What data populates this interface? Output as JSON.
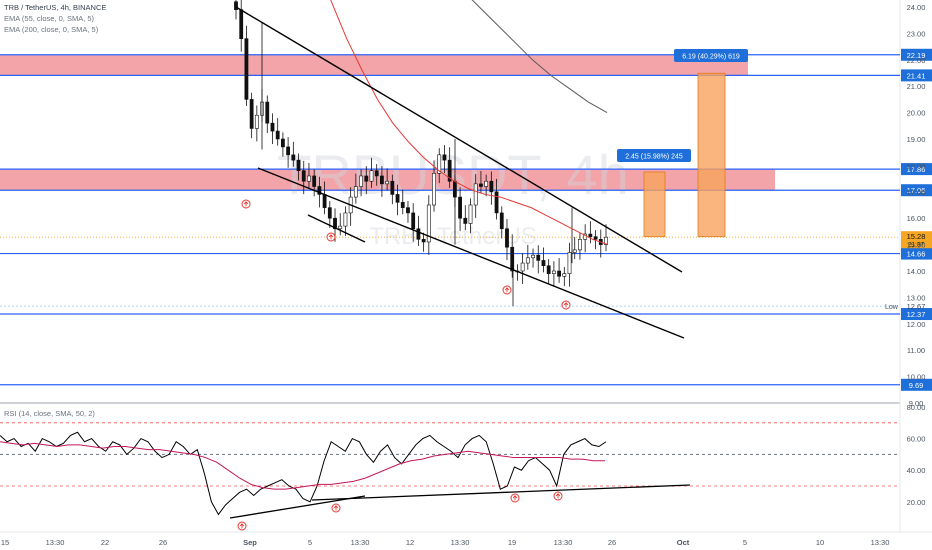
{
  "legend": {
    "title": "TRB / TetherUS, 4h, BINANCE",
    "ema55": "EMA (55, close, 0, SMA, 5)",
    "ema200": "EMA (200, close, 0, SMA, 5)",
    "rsi": "RSI (14, close, SMA, 50, 2)"
  },
  "watermark": {
    "symbol": "TRBUSDT, 4h",
    "name": "TRB / TetherUS"
  },
  "colors": {
    "up": "#26a69a",
    "down": "#ef5350",
    "candle": "#111111",
    "zone": "#f08d94",
    "hline": "#2962ff",
    "ema55": "#e53935",
    "ema200": "#5a5a5a",
    "rsi": "#000000",
    "rsi_ma": "#c2185b",
    "target": "#f7a35c",
    "label_bg": "#1e6fd9",
    "price_tag": "#f5a623"
  },
  "chart_data": [
    {
      "type": "line",
      "title": "TRB / TetherUS, 4h, BINANCE",
      "y_axis": {
        "ticks": [
          "24.00",
          "23.00",
          "22.00",
          "21.00",
          "20.00",
          "19.00",
          "18.00",
          "17.00",
          "16.00",
          "15.00",
          "14.00",
          "13.00",
          "12.00",
          "11.00",
          "10.00",
          "9.00"
        ],
        "range": [
          8.9,
          24.4
        ]
      },
      "x_axis": {
        "ticks": [
          "15",
          "13:30",
          "22",
          "26",
          "Sep",
          "5",
          "13:30",
          "12",
          "13:30",
          "19",
          "13:30",
          "26",
          "Oct",
          "5",
          "10",
          "13:30"
        ]
      },
      "price_series_close": [
        23.9,
        22.8,
        20.5,
        19.4,
        19.9,
        20.4,
        19.6,
        19.3,
        19.0,
        18.7,
        18.4,
        18.2,
        17.8,
        17.4,
        17.6,
        17.2,
        16.9,
        16.4,
        16.0,
        15.6,
        15.7,
        16.2,
        16.8,
        17.2,
        17.6,
        17.4,
        17.8,
        17.6,
        17.3,
        17.4,
        16.9,
        16.6,
        16.4,
        16.2,
        15.6,
        15.2,
        15.1,
        16.5,
        17.7,
        18.4,
        18.2,
        17.4,
        16.8,
        16.0,
        15.8,
        16.5,
        17.3,
        17.2,
        17.4,
        17.0,
        16.2,
        15.6,
        14.9,
        14.0,
        14.0,
        14.3,
        14.5,
        14.6,
        14.4,
        14.2,
        13.9,
        14.0,
        13.8,
        13.9,
        14.7,
        14.8,
        15.2,
        15.4,
        15.3,
        15.2,
        15.0,
        15.28
      ],
      "series": [
        {
          "name": "EMA (55, close, 0, SMA, 5)",
          "values": [
            26.0,
            24.2,
            22.8,
            21.6,
            20.5,
            19.6,
            18.9,
            18.3,
            17.8,
            17.4,
            17.1,
            16.9,
            16.8,
            16.6,
            16.4,
            16.1,
            15.8,
            15.5,
            15.2,
            15.0
          ]
        },
        {
          "name": "EMA (200, close, 0, SMA, 5)",
          "values": [
            24.8,
            24.1,
            23.4,
            22.7,
            22.0,
            21.4,
            20.9,
            20.4,
            20.0
          ]
        }
      ],
      "horizontal_levels": [
        "22.19",
        "21.41",
        "17.86",
        "17.06",
        "14.66",
        "12.37",
        "9.69"
      ],
      "supply_zones": [
        {
          "from": 21.41,
          "to": 22.19
        },
        {
          "from": 17.06,
          "to": 17.86
        }
      ],
      "low_marker": {
        "label": "Low",
        "value": "12.67"
      },
      "current_price": {
        "value": "15.28",
        "countdown": "21:37"
      },
      "targets": [
        {
          "label": "2.45 (15.98%) 245",
          "from": 15.3,
          "to": 17.75
        },
        {
          "label": "6.19 (40.29%) 619",
          "from": 15.3,
          "to": 21.49
        }
      ]
    },
    {
      "type": "line",
      "title": "RSI (14, close, SMA, 50, 2)",
      "y_axis": {
        "ticks": [
          "80.00",
          "60.00",
          "40.00",
          "20.00"
        ],
        "range": [
          0,
          80
        ],
        "bands": [
          30,
          50,
          70
        ]
      },
      "series": [
        {
          "name": "RSI",
          "values": [
            62,
            58,
            60,
            55,
            57,
            52,
            60,
            58,
            55,
            57,
            62,
            64,
            58,
            60,
            55,
            52,
            58,
            56,
            50,
            54,
            60,
            58,
            52,
            48,
            50,
            58,
            55,
            50,
            53,
            38,
            20,
            12,
            18,
            22,
            26,
            28,
            24,
            28,
            30,
            32,
            34,
            30,
            28,
            22,
            20,
            30,
            46,
            58,
            55,
            52,
            60,
            58,
            50,
            45,
            52,
            56,
            48,
            44,
            50,
            56,
            60,
            62,
            58,
            55,
            52,
            48,
            56,
            60,
            62,
            58,
            44,
            28,
            30,
            42,
            40,
            46,
            48,
            44,
            40,
            30,
            50,
            56,
            58,
            60,
            56,
            55,
            58
          ],
          "source": "RSI"
        },
        {
          "name": "RSI-based MA",
          "values": [
            58,
            57,
            56,
            57,
            56,
            55,
            56,
            56,
            55,
            54,
            55,
            55,
            54,
            53,
            53,
            52,
            51,
            50,
            48,
            45,
            40,
            35,
            31,
            29,
            28,
            28,
            29,
            30,
            31,
            31,
            32,
            33,
            35,
            38,
            41,
            44,
            46,
            47,
            49,
            50,
            51,
            52,
            51,
            50,
            49,
            48,
            48,
            48,
            48,
            48,
            47,
            47,
            46,
            46
          ]
        }
      ]
    }
  ]
}
